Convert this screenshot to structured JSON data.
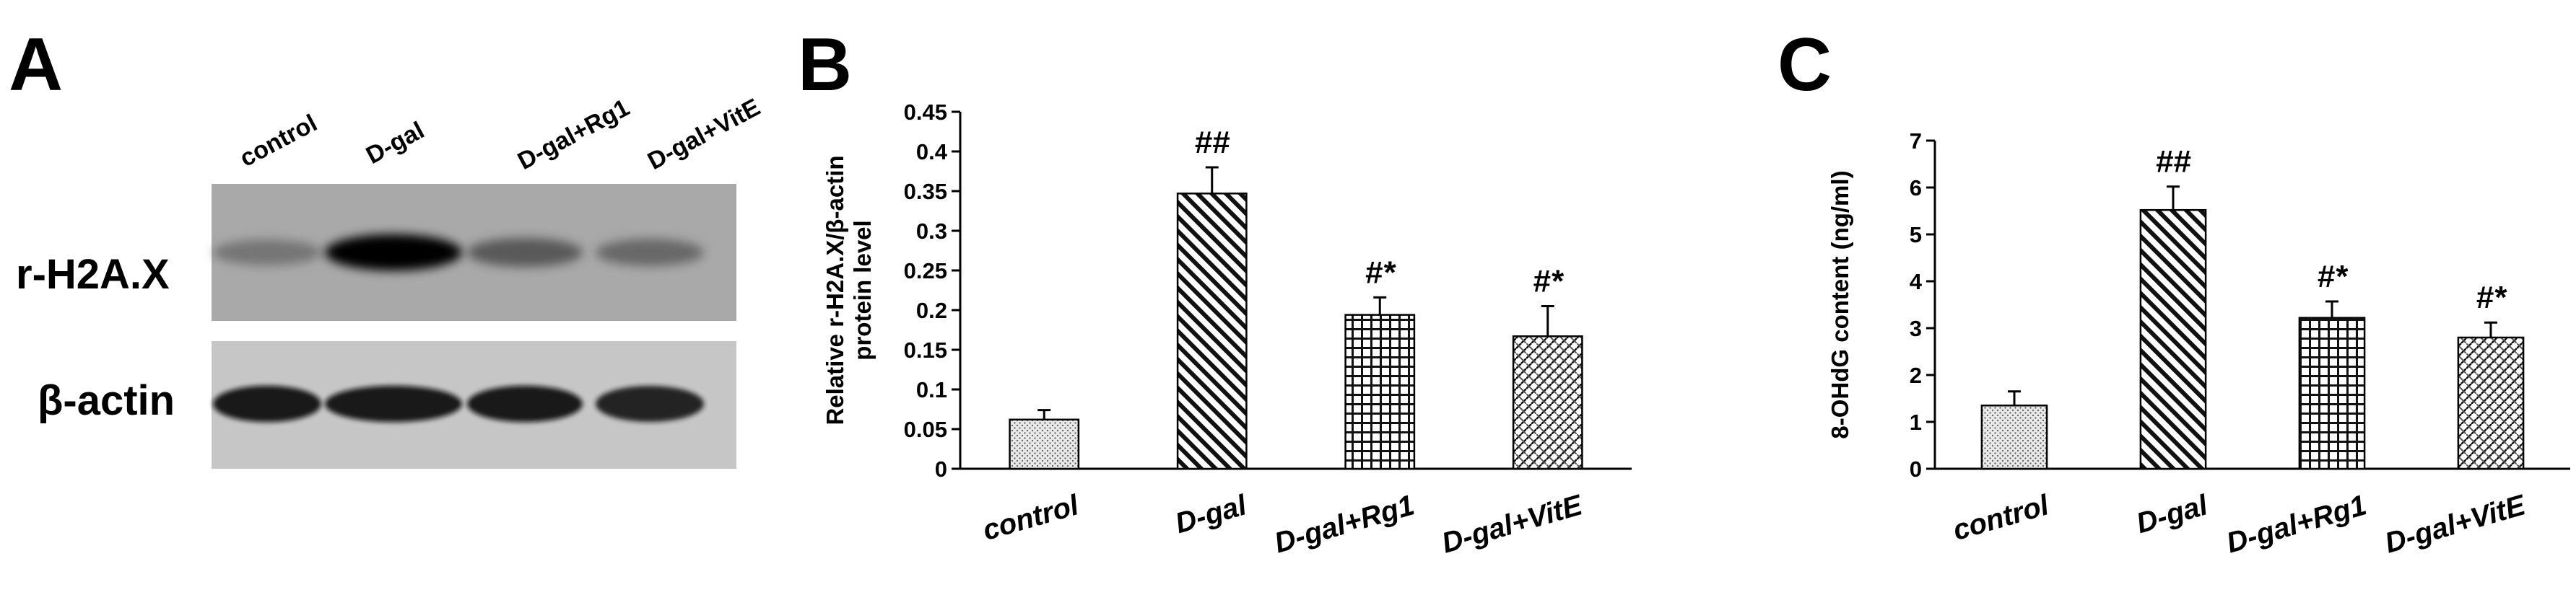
{
  "panels": {
    "a": "A",
    "b": "B",
    "c": "C"
  },
  "blot": {
    "lanes": [
      "control",
      "D-gal",
      "D-gal+Rg1",
      "D-gal+VitE"
    ],
    "rows": [
      "r-H2A.X",
      "β-actin"
    ],
    "band_intensity": {
      "r-H2A.X": [
        0.35,
        1.0,
        0.55,
        0.45
      ],
      "β-actin": [
        0.9,
        0.9,
        0.9,
        0.88
      ]
    }
  },
  "chart_data": [
    {
      "type": "bar",
      "categories": [
        "control",
        "D-gal",
        "D-gal+Rg1",
        "D-gal+VitE"
      ],
      "values": [
        0.062,
        0.347,
        0.194,
        0.167
      ],
      "errors": [
        0.012,
        0.033,
        0.022,
        0.038
      ],
      "significance": [
        "",
        "##",
        "#*",
        "#*"
      ],
      "patterns": [
        "dots",
        "diagonal",
        "grid",
        "weave"
      ],
      "ylabel_lines": [
        "Relative r-H2A.X/β-actin",
        "protein level"
      ],
      "ylim": [
        0,
        0.45
      ],
      "yticks": [
        "0",
        "0.05",
        "0.1",
        "0.15",
        "0.2",
        "0.25",
        "0.3",
        "0.35",
        "0.4",
        "0.45"
      ]
    },
    {
      "type": "bar",
      "categories": [
        "control",
        "D-gal",
        "D-gal+Rg1",
        "D-gal+VitE"
      ],
      "values": [
        1.35,
        5.52,
        3.22,
        2.8
      ],
      "errors": [
        0.3,
        0.5,
        0.35,
        0.32
      ],
      "significance": [
        "",
        "##",
        "#*",
        "#*"
      ],
      "patterns": [
        "dots",
        "diagonal",
        "grid",
        "weave"
      ],
      "ylabel_lines": [
        "8-OHdG content (ng/ml)"
      ],
      "ylim": [
        0,
        7
      ],
      "yticks": [
        "0",
        "1",
        "2",
        "3",
        "4",
        "5",
        "6",
        "7"
      ]
    }
  ]
}
